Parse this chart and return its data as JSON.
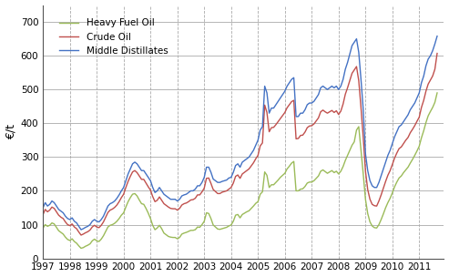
{
  "ylabel": "€/t",
  "ylim": [
    0,
    750
  ],
  "yticks": [
    0,
    100,
    200,
    300,
    400,
    500,
    600,
    700
  ],
  "xlim": [
    1997.0,
    2011.92
  ],
  "xticks": [
    1997,
    1998,
    1999,
    2000,
    2001,
    2002,
    2003,
    2004,
    2005,
    2006,
    2007,
    2008,
    2009,
    2010,
    2011
  ],
  "line_colors": {
    "middle_distillates": "#4472C4",
    "crude_oil": "#C0504D",
    "heavy_fuel_oil": "#9BBB59"
  },
  "legend_labels": [
    "Middle Distillates",
    "Crude Oil",
    "Heavy Fuel Oil"
  ],
  "time_points": [
    1997.0,
    1997.083,
    1997.167,
    1997.25,
    1997.333,
    1997.417,
    1997.5,
    1997.583,
    1997.667,
    1997.75,
    1997.833,
    1997.917,
    1998.0,
    1998.083,
    1998.167,
    1998.25,
    1998.333,
    1998.417,
    1998.5,
    1998.583,
    1998.667,
    1998.75,
    1998.833,
    1998.917,
    1999.0,
    1999.083,
    1999.167,
    1999.25,
    1999.333,
    1999.417,
    1999.5,
    1999.583,
    1999.667,
    1999.75,
    1999.833,
    1999.917,
    2000.0,
    2000.083,
    2000.167,
    2000.25,
    2000.333,
    2000.417,
    2000.5,
    2000.583,
    2000.667,
    2000.75,
    2000.833,
    2000.917,
    2001.0,
    2001.083,
    2001.167,
    2001.25,
    2001.333,
    2001.417,
    2001.5,
    2001.583,
    2001.667,
    2001.75,
    2001.833,
    2001.917,
    2002.0,
    2002.083,
    2002.167,
    2002.25,
    2002.333,
    2002.417,
    2002.5,
    2002.583,
    2002.667,
    2002.75,
    2002.833,
    2002.917,
    2003.0,
    2003.083,
    2003.167,
    2003.25,
    2003.333,
    2003.417,
    2003.5,
    2003.583,
    2003.667,
    2003.75,
    2003.833,
    2003.917,
    2004.0,
    2004.083,
    2004.167,
    2004.25,
    2004.333,
    2004.417,
    2004.5,
    2004.583,
    2004.667,
    2004.75,
    2004.833,
    2004.917,
    2005.0,
    2005.083,
    2005.167,
    2005.25,
    2005.333,
    2005.417,
    2005.5,
    2005.583,
    2005.667,
    2005.75,
    2005.833,
    2005.917,
    2006.0,
    2006.083,
    2006.167,
    2006.25,
    2006.333,
    2006.417,
    2006.5,
    2006.583,
    2006.667,
    2006.75,
    2006.833,
    2006.917,
    2007.0,
    2007.083,
    2007.167,
    2007.25,
    2007.333,
    2007.417,
    2007.5,
    2007.583,
    2007.667,
    2007.75,
    2007.833,
    2007.917,
    2008.0,
    2008.083,
    2008.167,
    2008.25,
    2008.333,
    2008.417,
    2008.5,
    2008.583,
    2008.667,
    2008.75,
    2008.833,
    2008.917,
    2009.0,
    2009.083,
    2009.167,
    2009.25,
    2009.333,
    2009.417,
    2009.5,
    2009.583,
    2009.667,
    2009.75,
    2009.833,
    2009.917,
    2010.0,
    2010.083,
    2010.167,
    2010.25,
    2010.333,
    2010.417,
    2010.5,
    2010.583,
    2010.667,
    2010.75,
    2010.833,
    2010.917,
    2011.0,
    2011.083,
    2011.167,
    2011.25,
    2011.333,
    2011.417,
    2011.5,
    2011.583,
    2011.667
  ],
  "middle_distillates": [
    150,
    165,
    155,
    160,
    170,
    165,
    155,
    145,
    140,
    135,
    125,
    118,
    115,
    120,
    110,
    105,
    95,
    85,
    88,
    92,
    95,
    100,
    110,
    115,
    110,
    108,
    115,
    125,
    140,
    155,
    162,
    165,
    170,
    178,
    188,
    200,
    210,
    230,
    250,
    265,
    280,
    285,
    280,
    270,
    260,
    260,
    250,
    240,
    230,
    210,
    195,
    200,
    210,
    200,
    190,
    185,
    180,
    175,
    175,
    175,
    170,
    175,
    185,
    188,
    190,
    195,
    200,
    200,
    205,
    215,
    215,
    225,
    240,
    270,
    270,
    255,
    235,
    230,
    225,
    225,
    228,
    230,
    232,
    238,
    240,
    255,
    275,
    280,
    270,
    285,
    290,
    295,
    300,
    310,
    320,
    335,
    350,
    380,
    390,
    510,
    490,
    430,
    445,
    445,
    455,
    465,
    475,
    485,
    495,
    510,
    520,
    530,
    535,
    420,
    420,
    430,
    430,
    440,
    455,
    460,
    460,
    465,
    475,
    485,
    505,
    510,
    505,
    500,
    505,
    510,
    505,
    510,
    500,
    510,
    530,
    560,
    580,
    605,
    630,
    640,
    650,
    610,
    530,
    440,
    310,
    260,
    230,
    215,
    210,
    210,
    225,
    245,
    265,
    285,
    305,
    320,
    340,
    360,
    375,
    390,
    395,
    405,
    415,
    425,
    440,
    450,
    460,
    475,
    490,
    520,
    540,
    570,
    590,
    600,
    615,
    635,
    658
  ],
  "crude_oil": [
    130,
    145,
    138,
    143,
    152,
    148,
    138,
    128,
    122,
    118,
    108,
    100,
    97,
    102,
    93,
    88,
    78,
    69,
    72,
    76,
    79,
    84,
    93,
    98,
    93,
    91,
    98,
    108,
    122,
    136,
    143,
    146,
    151,
    158,
    168,
    180,
    190,
    210,
    228,
    243,
    256,
    260,
    254,
    244,
    234,
    234,
    223,
    212,
    202,
    183,
    168,
    172,
    182,
    172,
    162,
    157,
    152,
    148,
    147,
    147,
    143,
    148,
    158,
    162,
    164,
    168,
    173,
    174,
    178,
    188,
    188,
    197,
    208,
    237,
    238,
    222,
    204,
    198,
    192,
    192,
    196,
    198,
    200,
    205,
    210,
    223,
    243,
    247,
    237,
    250,
    255,
    260,
    265,
    274,
    283,
    295,
    305,
    333,
    342,
    454,
    432,
    375,
    387,
    388,
    396,
    405,
    414,
    423,
    432,
    446,
    455,
    464,
    468,
    354,
    355,
    364,
    365,
    374,
    387,
    392,
    393,
    398,
    407,
    416,
    434,
    439,
    434,
    430,
    434,
    438,
    432,
    437,
    426,
    436,
    457,
    486,
    505,
    527,
    548,
    558,
    568,
    526,
    447,
    358,
    258,
    204,
    175,
    160,
    156,
    155,
    170,
    188,
    208,
    228,
    246,
    260,
    278,
    297,
    312,
    325,
    330,
    340,
    350,
    358,
    372,
    382,
    393,
    406,
    418,
    447,
    468,
    495,
    516,
    528,
    540,
    560,
    607
  ],
  "heavy_fuel_oil": [
    90,
    100,
    95,
    98,
    105,
    102,
    92,
    82,
    77,
    72,
    63,
    56,
    53,
    58,
    50,
    45,
    37,
    30,
    32,
    36,
    39,
    43,
    52,
    57,
    52,
    50,
    57,
    67,
    80,
    93,
    98,
    100,
    104,
    110,
    118,
    128,
    135,
    152,
    168,
    180,
    190,
    192,
    185,
    173,
    162,
    160,
    148,
    134,
    118,
    98,
    85,
    90,
    98,
    88,
    75,
    70,
    65,
    63,
    62,
    62,
    58,
    62,
    72,
    75,
    77,
    80,
    83,
    83,
    85,
    93,
    92,
    100,
    110,
    135,
    133,
    118,
    99,
    93,
    87,
    86,
    88,
    90,
    92,
    96,
    99,
    110,
    128,
    130,
    120,
    130,
    134,
    138,
    141,
    148,
    155,
    163,
    168,
    190,
    197,
    256,
    246,
    210,
    218,
    218,
    225,
    232,
    240,
    246,
    252,
    265,
    273,
    282,
    287,
    200,
    200,
    205,
    206,
    213,
    223,
    226,
    226,
    230,
    237,
    244,
    258,
    262,
    257,
    252,
    256,
    260,
    254,
    258,
    250,
    258,
    272,
    290,
    305,
    320,
    335,
    345,
    380,
    390,
    320,
    250,
    175,
    133,
    108,
    96,
    91,
    90,
    100,
    115,
    132,
    150,
    165,
    178,
    194,
    212,
    226,
    238,
    244,
    254,
    262,
    270,
    282,
    293,
    305,
    318,
    332,
    357,
    378,
    402,
    422,
    435,
    447,
    462,
    490
  ]
}
